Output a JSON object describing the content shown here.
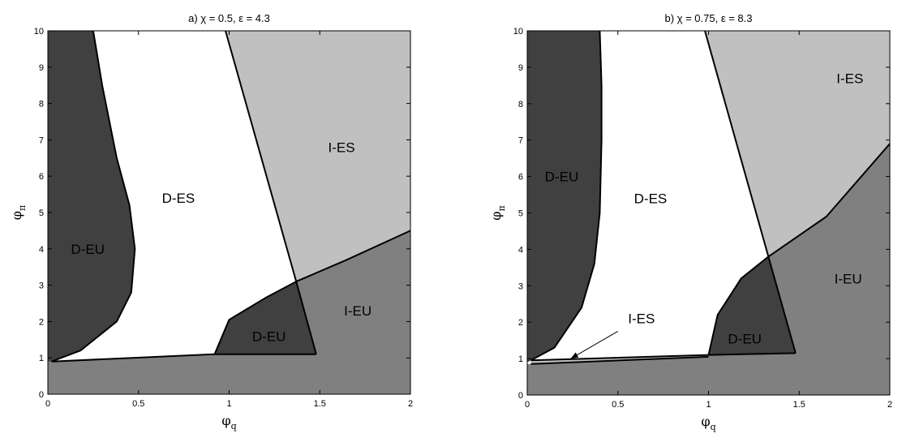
{
  "chart_data": [
    {
      "type": "area",
      "title": "a) χ = 0.5, ε = 4.3",
      "xlabel": "φ",
      "xlabel_sub": "q",
      "ylabel": "φ",
      "ylabel_sub": "π",
      "xlim": [
        0,
        2
      ],
      "ylim": [
        0,
        10
      ],
      "xticks": [
        0,
        0.5,
        1,
        1.5,
        2
      ],
      "yticks": [
        0,
        1,
        2,
        3,
        4,
        5,
        6,
        7,
        8,
        9,
        10
      ],
      "grid": false,
      "colors": {
        "D-EU": "#404040",
        "D-ES": "#ffffff",
        "I-ES": "#c0c0c0",
        "I-EU": "#808080"
      },
      "regions": [
        {
          "name": "I-EU",
          "fill": "#808080",
          "polygon": [
            [
              0,
              0
            ],
            [
              2,
              0
            ],
            [
              2,
              4.5
            ],
            [
              1.65,
              3.7
            ],
            [
              1.37,
              3.1
            ],
            [
              1.2,
              2.65
            ],
            [
              1.0,
              2.05
            ],
            [
              0.92,
              1.1
            ],
            [
              0.02,
              0.9
            ],
            [
              0,
              0.9
            ]
          ]
        },
        {
          "name": "I-ES",
          "fill": "#c0c0c0",
          "polygon": [
            [
              0.98,
              10
            ],
            [
              2,
              10
            ],
            [
              2,
              4.5
            ],
            [
              1.65,
              3.7
            ],
            [
              1.37,
              3.1
            ]
          ]
        },
        {
          "name": "D-ES",
          "fill": "#ffffff",
          "polygon": [
            [
              0.25,
              10
            ],
            [
              0.98,
              10
            ],
            [
              1.37,
              3.1
            ],
            [
              1.2,
              2.65
            ],
            [
              1.0,
              2.05
            ],
            [
              0.92,
              1.1
            ],
            [
              0.02,
              0.9
            ],
            [
              0.18,
              1.2
            ],
            [
              0.38,
              2.0
            ],
            [
              0.46,
              2.8
            ],
            [
              0.48,
              4.0
            ],
            [
              0.45,
              5.2
            ],
            [
              0.38,
              6.5
            ],
            [
              0.3,
              8.5
            ]
          ]
        },
        {
          "name": "D-EU",
          "fill": "#404040",
          "polygon": [
            [
              0,
              0.9
            ],
            [
              0.02,
              0.9
            ],
            [
              0.18,
              1.2
            ],
            [
              0.38,
              2.0
            ],
            [
              0.46,
              2.8
            ],
            [
              0.48,
              4.0
            ],
            [
              0.45,
              5.2
            ],
            [
              0.38,
              6.5
            ],
            [
              0.3,
              8.5
            ],
            [
              0.25,
              10
            ],
            [
              0,
              10
            ]
          ]
        },
        {
          "name": "D-EU",
          "fill": "#404040",
          "polygon": [
            [
              0.92,
              1.1
            ],
            [
              1.0,
              2.05
            ],
            [
              1.2,
              2.65
            ],
            [
              1.37,
              3.1
            ],
            [
              1.48,
              1.1
            ]
          ]
        }
      ],
      "boundaries": [
        [
          [
            0.25,
            10
          ],
          [
            0.3,
            8.5
          ],
          [
            0.38,
            6.5
          ],
          [
            0.45,
            5.2
          ],
          [
            0.48,
            4.0
          ],
          [
            0.46,
            2.8
          ],
          [
            0.38,
            2.0
          ],
          [
            0.18,
            1.2
          ],
          [
            0.02,
            0.9
          ]
        ],
        [
          [
            0.98,
            10
          ],
          [
            1.37,
            3.1
          ],
          [
            1.48,
            1.1
          ]
        ],
        [
          [
            0.02,
            0.9
          ],
          [
            0.92,
            1.1
          ],
          [
            1.48,
            1.1
          ]
        ],
        [
          [
            0.92,
            1.1
          ],
          [
            1.0,
            2.05
          ],
          [
            1.2,
            2.65
          ],
          [
            1.37,
            3.1
          ],
          [
            1.65,
            3.7
          ],
          [
            2,
            4.5
          ]
        ]
      ],
      "annotations": [
        {
          "text": "D-EU",
          "x": 0.22,
          "y": 4.0
        },
        {
          "text": "D-ES",
          "x": 0.72,
          "y": 5.4
        },
        {
          "text": "I-ES",
          "x": 1.62,
          "y": 6.8
        },
        {
          "text": "D-EU",
          "x": 1.22,
          "y": 1.6
        },
        {
          "text": "I-EU",
          "x": 1.71,
          "y": 2.3
        }
      ],
      "arrows": []
    },
    {
      "type": "area",
      "title": "b) χ = 0.75, ε = 8.3",
      "xlabel": "φ",
      "xlabel_sub": "q",
      "ylabel": "φ",
      "ylabel_sub": "π",
      "xlim": [
        0,
        2
      ],
      "ylim": [
        0,
        10
      ],
      "xticks": [
        0,
        0.5,
        1,
        1.5,
        2
      ],
      "yticks": [
        0,
        1,
        2,
        3,
        4,
        5,
        6,
        7,
        8,
        9,
        10
      ],
      "grid": false,
      "colors": {
        "D-EU": "#404040",
        "D-ES": "#ffffff",
        "I-ES": "#c0c0c0",
        "I-EU": "#808080"
      },
      "regions": [
        {
          "name": "I-EU",
          "fill": "#808080",
          "polygon": [
            [
              0,
              0
            ],
            [
              2,
              0
            ],
            [
              2,
              6.9
            ],
            [
              1.65,
              4.9
            ],
            [
              1.33,
              3.8
            ],
            [
              1.18,
              3.2
            ],
            [
              1.05,
              2.2
            ],
            [
              1.0,
              1.05
            ],
            [
              0.02,
              0.85
            ],
            [
              0,
              0.85
            ]
          ]
        },
        {
          "name": "I-ES",
          "fill": "#c0c0c0",
          "polygon": [
            [
              0.98,
              10
            ],
            [
              2,
              10
            ],
            [
              2,
              6.9
            ],
            [
              1.65,
              4.9
            ],
            [
              1.33,
              3.8
            ]
          ]
        },
        {
          "name": "I-ES",
          "fill": "#c0c0c0",
          "polygon": [
            [
              0.02,
              0.85
            ],
            [
              1.0,
              1.05
            ],
            [
              1.0,
              1.1
            ],
            [
              0.02,
              0.95
            ]
          ]
        },
        {
          "name": "D-ES",
          "fill": "#ffffff",
          "polygon": [
            [
              0.4,
              10
            ],
            [
              0.98,
              10
            ],
            [
              1.33,
              3.8
            ],
            [
              1.18,
              3.2
            ],
            [
              1.05,
              2.2
            ],
            [
              1.0,
              1.1
            ],
            [
              0.02,
              0.95
            ],
            [
              0.15,
              1.3
            ],
            [
              0.3,
              2.4
            ],
            [
              0.37,
              3.6
            ],
            [
              0.4,
              5
            ],
            [
              0.41,
              7
            ],
            [
              0.41,
              8.5
            ]
          ]
        },
        {
          "name": "D-EU",
          "fill": "#404040",
          "polygon": [
            [
              0,
              0.9
            ],
            [
              0.02,
              0.95
            ],
            [
              0.15,
              1.3
            ],
            [
              0.3,
              2.4
            ],
            [
              0.37,
              3.6
            ],
            [
              0.4,
              5
            ],
            [
              0.41,
              7
            ],
            [
              0.41,
              8.5
            ],
            [
              0.4,
              10
            ],
            [
              0,
              10
            ]
          ]
        },
        {
          "name": "D-EU",
          "fill": "#404040",
          "polygon": [
            [
              1.0,
              1.1
            ],
            [
              1.05,
              2.2
            ],
            [
              1.18,
              3.2
            ],
            [
              1.33,
              3.8
            ],
            [
              1.48,
              1.15
            ]
          ]
        }
      ],
      "boundaries": [
        [
          [
            0.4,
            10
          ],
          [
            0.41,
            8.5
          ],
          [
            0.41,
            7
          ],
          [
            0.4,
            5
          ],
          [
            0.37,
            3.6
          ],
          [
            0.3,
            2.4
          ],
          [
            0.15,
            1.3
          ],
          [
            0.02,
            0.95
          ]
        ],
        [
          [
            0.98,
            10
          ],
          [
            1.33,
            3.8
          ],
          [
            1.48,
            1.15
          ]
        ],
        [
          [
            0.02,
            0.95
          ],
          [
            1.0,
            1.1
          ],
          [
            1.48,
            1.15
          ]
        ],
        [
          [
            0.02,
            0.85
          ],
          [
            1.0,
            1.05
          ]
        ],
        [
          [
            1.0,
            1.1
          ],
          [
            1.05,
            2.2
          ],
          [
            1.18,
            3.2
          ],
          [
            1.33,
            3.8
          ],
          [
            1.65,
            4.9
          ],
          [
            2,
            6.9
          ]
        ]
      ],
      "annotations": [
        {
          "text": "D-EU",
          "x": 0.19,
          "y": 6.0
        },
        {
          "text": "D-ES",
          "x": 0.68,
          "y": 5.4
        },
        {
          "text": "I-ES",
          "x": 1.78,
          "y": 8.7
        },
        {
          "text": "I-ES",
          "x": 0.63,
          "y": 2.1
        },
        {
          "text": "D-EU",
          "x": 1.2,
          "y": 1.55
        },
        {
          "text": "I-EU",
          "x": 1.77,
          "y": 3.2
        }
      ],
      "arrows": [
        {
          "from": [
            0.5,
            1.75
          ],
          "to": [
            0.24,
            1.0
          ]
        }
      ]
    }
  ]
}
